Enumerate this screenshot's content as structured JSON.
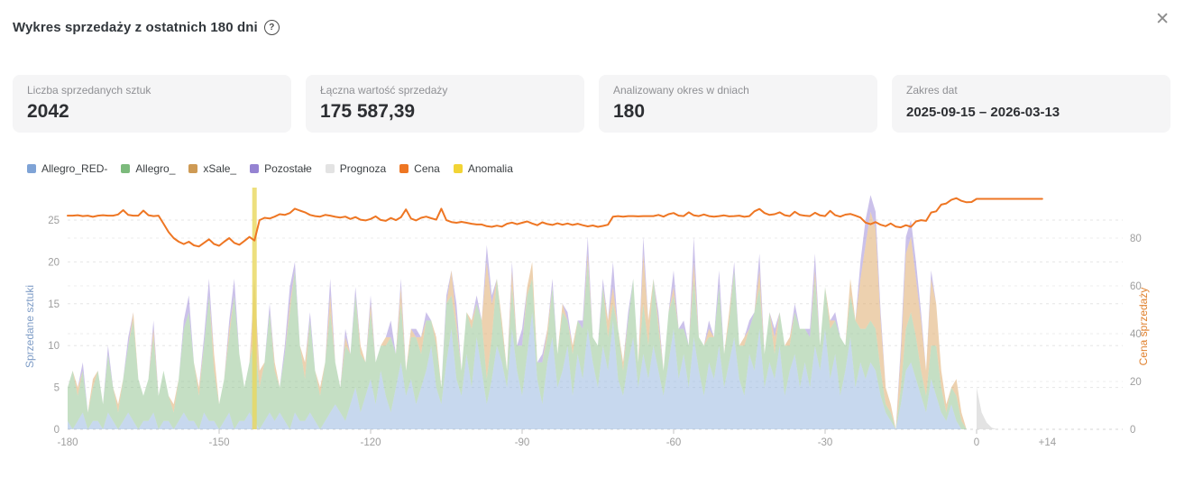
{
  "header": {
    "title": "Wykres sprzedaży z ostatnich 180 dni",
    "help_icon": "?",
    "close_icon": "✕"
  },
  "stats": [
    {
      "label": "Liczba sprzedanych sztuk",
      "value": "2042"
    },
    {
      "label": "Łączna wartość sprzedaży",
      "value": "175 587,39"
    },
    {
      "label": "Analizowany okres w dniach",
      "value": "180"
    },
    {
      "label": "Zakres dat",
      "value": "2025-09-15 – 2026-03-13"
    }
  ],
  "chart_data": {
    "type": "area",
    "title": "",
    "xlabel": "",
    "x_range": [
      -180,
      14
    ],
    "grid": true,
    "legend_position": "top-left",
    "legend": [
      {
        "label": "Allegro_RED-",
        "color": "#7FA3D6"
      },
      {
        "label": "Allegro_",
        "color": "#7CBA7C"
      },
      {
        "label": "xSale_",
        "color": "#CE9A54"
      },
      {
        "label": "Pozostałe",
        "color": "#9583D2"
      },
      {
        "label": "Prognoza",
        "color": "#E3E3E3"
      },
      {
        "label": "Cena",
        "color": "#EE7623"
      },
      {
        "label": "Anomalia",
        "color": "#F2D435"
      }
    ],
    "x_ticks": [
      {
        "v": -180,
        "label": "-180"
      },
      {
        "v": -150,
        "label": "-150"
      },
      {
        "v": -120,
        "label": "-120"
      },
      {
        "v": -90,
        "label": "-90"
      },
      {
        "v": -60,
        "label": "-60"
      },
      {
        "v": -30,
        "label": "-30"
      },
      {
        "v": 0,
        "label": "0"
      },
      {
        "v": 14,
        "label": "+14"
      }
    ],
    "left_axis": {
      "title": "Sprzedane sztuki",
      "ticks": [
        0,
        5,
        10,
        15,
        20,
        25
      ],
      "color": "#7F9DC7",
      "tick_color": "#9E9E9E"
    },
    "right_axis": {
      "title": "Cena sprzedaży",
      "ticks": [
        0,
        20,
        40,
        60,
        80
      ],
      "color": "#E0812E",
      "tick_color": "#9E9E9E"
    },
    "series": [
      {
        "name": "Allegro_RED-",
        "type": "area",
        "stack": true,
        "axis": "left",
        "color": "#8FB1DE",
        "start_day": -180,
        "values": [
          1,
          0,
          1,
          2,
          0,
          1,
          1,
          0,
          2,
          1,
          0,
          1,
          2,
          1,
          0,
          1,
          1,
          2,
          0,
          1,
          1,
          0,
          1,
          2,
          1,
          1,
          0,
          2,
          1,
          1,
          0,
          1,
          2,
          0,
          1,
          1,
          2,
          1,
          0,
          1,
          2,
          1,
          2,
          1,
          0,
          2,
          1,
          1,
          2,
          1,
          0,
          1,
          2,
          3,
          2,
          1,
          3,
          5,
          2,
          4,
          6,
          3,
          7,
          4,
          2,
          5,
          8,
          4,
          6,
          3,
          5,
          7,
          10,
          5,
          3,
          8,
          12,
          6,
          4,
          9,
          5,
          11,
          7,
          3,
          6,
          10,
          8,
          5,
          12,
          7,
          4,
          9,
          14,
          6,
          3,
          8,
          11,
          5,
          7,
          10,
          4,
          9,
          6,
          12,
          8,
          5,
          10,
          7,
          13,
          6,
          4,
          8,
          11,
          5,
          9,
          6,
          10,
          7,
          4,
          8,
          12,
          6,
          9,
          5,
          11,
          7,
          4,
          8,
          6,
          10,
          5,
          8,
          11,
          6,
          4,
          9,
          7,
          12,
          5,
          8,
          6,
          10,
          4,
          7,
          9,
          5,
          8,
          5,
          10,
          7,
          12,
          6,
          9,
          4,
          7,
          11,
          5,
          8,
          6,
          8,
          7,
          4,
          2,
          1,
          0,
          3,
          7,
          8,
          6,
          4,
          2,
          6,
          4,
          2,
          1,
          3,
          1,
          0,
          0,
          0,
          0
        ]
      },
      {
        "name": "Allegro_",
        "type": "area",
        "stack": true,
        "axis": "left",
        "color": "#8CBF8A",
        "start_day": -180,
        "values": [
          4,
          7,
          3,
          5,
          2,
          4,
          6,
          3,
          7,
          4,
          2,
          5,
          8,
          12,
          6,
          3,
          5,
          9,
          4,
          6,
          3,
          2,
          5,
          10,
          13,
          7,
          4,
          8,
          15,
          6,
          3,
          5,
          9,
          16,
          8,
          4,
          6,
          10,
          5,
          7,
          12,
          6,
          3,
          8,
          14,
          17,
          9,
          5,
          11,
          6,
          4,
          7,
          12,
          5,
          3,
          9,
          6,
          11,
          7,
          4,
          8,
          5,
          3,
          6,
          9,
          4,
          7,
          3,
          5,
          8,
          4,
          6,
          3,
          5,
          2,
          7,
          4,
          6,
          3,
          5,
          7,
          4,
          6,
          3,
          5,
          8,
          4,
          2,
          5,
          3,
          6,
          7,
          4,
          2,
          5,
          3,
          6,
          4,
          7,
          3,
          5,
          4,
          6,
          8,
          3,
          5,
          7,
          4,
          2,
          6,
          3,
          5,
          7,
          3,
          6,
          4,
          8,
          5,
          3,
          6,
          4,
          6,
          3,
          5,
          7,
          4,
          6,
          3,
          5,
          7,
          4,
          5,
          8,
          4,
          6,
          3,
          7,
          5,
          4,
          6,
          3,
          4,
          6,
          3,
          5,
          7,
          4,
          6,
          8,
          3,
          5,
          6,
          4,
          7,
          3,
          5,
          8,
          4,
          6,
          5,
          5,
          3,
          1,
          1,
          0,
          2,
          5,
          6,
          5,
          3,
          2,
          4,
          6,
          3,
          1,
          2,
          3,
          1,
          0,
          0,
          0
        ]
      },
      {
        "name": "xSale_",
        "type": "area",
        "stack": true,
        "axis": "left",
        "color": "#DCA45F",
        "start_day": -180,
        "values": [
          0,
          0,
          1,
          0,
          0,
          1,
          0,
          0,
          0,
          0,
          1,
          0,
          0,
          1,
          0,
          0,
          0,
          1,
          0,
          0,
          0,
          1,
          0,
          0,
          0,
          0,
          1,
          0,
          0,
          2,
          0,
          0,
          1,
          0,
          0,
          0,
          0,
          6,
          2,
          0,
          0,
          1,
          0,
          0,
          1,
          0,
          0,
          2,
          0,
          0,
          1,
          0,
          2,
          0,
          0,
          1,
          0,
          0,
          1,
          0,
          1,
          0,
          0,
          1,
          0,
          0,
          2,
          0,
          1,
          0,
          2,
          0,
          0,
          1,
          0,
          0,
          3,
          1,
          0,
          0,
          1,
          0,
          0,
          14,
          4,
          0,
          1,
          0,
          2,
          0,
          0,
          1,
          2,
          0,
          0,
          1,
          0,
          0,
          1,
          0,
          1,
          0,
          0,
          1,
          0,
          0,
          0,
          2,
          2,
          0,
          1,
          0,
          0,
          0,
          6,
          3,
          0,
          1,
          0,
          0,
          1,
          0,
          0,
          0,
          2,
          0,
          0,
          1,
          0,
          0,
          0,
          1,
          0,
          0,
          1,
          0,
          0,
          2,
          0,
          0,
          2,
          0,
          0,
          1,
          0,
          0,
          0,
          0,
          1,
          0,
          0,
          1,
          0,
          0,
          0,
          2,
          0,
          6,
          10,
          13,
          12,
          6,
          2,
          1,
          0,
          4,
          9,
          9,
          7,
          6,
          3,
          8,
          5,
          2,
          1,
          0,
          2,
          1,
          0,
          0,
          0
        ]
      },
      {
        "name": "Pozostałe",
        "type": "area",
        "stack": true,
        "axis": "left",
        "color": "#9783D6",
        "start_day": -180,
        "values": [
          0,
          0,
          0,
          1,
          0,
          0,
          0,
          0,
          1,
          0,
          0,
          0,
          1,
          0,
          0,
          0,
          0,
          1,
          0,
          0,
          0,
          0,
          0,
          1,
          2,
          0,
          0,
          1,
          2,
          0,
          0,
          0,
          1,
          2,
          0,
          0,
          0,
          1,
          0,
          0,
          1,
          0,
          0,
          1,
          2,
          1,
          0,
          0,
          1,
          0,
          0,
          0,
          2,
          0,
          0,
          1,
          0,
          1,
          0,
          0,
          1,
          0,
          0,
          0,
          2,
          0,
          1,
          0,
          0,
          1,
          0,
          1,
          0,
          0,
          0,
          1,
          0,
          2,
          0,
          0,
          0,
          1,
          0,
          2,
          1,
          0,
          0,
          0,
          1,
          0,
          2,
          0,
          0,
          0,
          1,
          0,
          1,
          0,
          0,
          1,
          0,
          0,
          1,
          2,
          0,
          0,
          1,
          0,
          3,
          0,
          0,
          1,
          0,
          0,
          2,
          0,
          0,
          1,
          0,
          0,
          2,
          0,
          1,
          0,
          3,
          0,
          0,
          1,
          0,
          2,
          0,
          0,
          1,
          0,
          0,
          1,
          0,
          2,
          0,
          0,
          1,
          0,
          0,
          0,
          1,
          0,
          0,
          1,
          2,
          0,
          0,
          0,
          1,
          0,
          0,
          0,
          0,
          2,
          3,
          2,
          2,
          1,
          0,
          0,
          0,
          1,
          2,
          2,
          2,
          1,
          0,
          1,
          0,
          0,
          0,
          0,
          0,
          0,
          0,
          0,
          0
        ]
      },
      {
        "name": "Prognoza",
        "type": "area",
        "stack": false,
        "axis": "left",
        "color": "#D9D9D9",
        "start_day": 0,
        "values": [
          5,
          2,
          0.8,
          0.2,
          0
        ]
      },
      {
        "name": "Cena",
        "type": "line",
        "axis": "right",
        "color": "#EE7623",
        "start_day": -180,
        "values": [
          89.4,
          89.4,
          89.6,
          89.2,
          89.4,
          88.9,
          89.4,
          89.6,
          89.4,
          89.4,
          89.9,
          91.7,
          89.7,
          89.4,
          89.4,
          91.5,
          89.6,
          89.2,
          89.4,
          86.0,
          82.5,
          80.0,
          78.5,
          77.5,
          78.5,
          77.0,
          76.5,
          78.0,
          79.5,
          77.5,
          76.8,
          78.5,
          80.0,
          78.0,
          77.2,
          78.8,
          80.5,
          79.0,
          87.5,
          88.5,
          88.2,
          89.0,
          90.0,
          89.7,
          90.5,
          92.3,
          91.5,
          90.8,
          89.7,
          89.2,
          89.0,
          89.7,
          89.4,
          88.9,
          88.6,
          89.0,
          88.0,
          88.8,
          87.7,
          87.4,
          88.0,
          89.1,
          87.6,
          87.2,
          88.4,
          87.5,
          88.7,
          92.0,
          88.2,
          87.4,
          88.5,
          89.0,
          88.3,
          87.7,
          92.3,
          87.5,
          86.7,
          86.4,
          86.8,
          86.4,
          86.0,
          85.7,
          85.7,
          85.0,
          84.7,
          85.2,
          84.8,
          86.0,
          86.5,
          85.8,
          86.4,
          87.0,
          86.1,
          85.4,
          86.6,
          85.9,
          85.5,
          86.2,
          85.6,
          86.1,
          85.5,
          86.0,
          85.4,
          84.9,
          85.3,
          84.7,
          85.1,
          85.6,
          89.0,
          89.2,
          89.0,
          89.2,
          89.2,
          89.1,
          89.2,
          89.2,
          89.2,
          89.7,
          89.0,
          90.0,
          90.5,
          89.4,
          89.2,
          90.8,
          89.5,
          89.2,
          89.9,
          89.2,
          89.0,
          89.2,
          89.5,
          89.1,
          89.2,
          89.4,
          88.9,
          89.2,
          91.2,
          92.2,
          90.5,
          89.7,
          90.0,
          90.8,
          89.6,
          89.2,
          91.0,
          89.7,
          89.4,
          89.2,
          90.6,
          89.5,
          89.2,
          91.4,
          89.6,
          89.0,
          89.8,
          90.1,
          89.4,
          88.6,
          86.5,
          85.8,
          86.7,
          85.6,
          85.0,
          86.1,
          84.8,
          84.5,
          85.4,
          84.7,
          87.0,
          87.5,
          87.2,
          90.7,
          91.2,
          94.0,
          94.5,
          96.0,
          96.7,
          95.6,
          95.0,
          95.1,
          96.4,
          96.4,
          96.4,
          96.4,
          96.4,
          96.4,
          96.4,
          96.4,
          96.4,
          96.4,
          96.4,
          96.4,
          96.4,
          96.4
        ]
      },
      {
        "name": "Anomalia",
        "type": "vline",
        "color": "#E9D75C",
        "day": -143
      }
    ]
  }
}
